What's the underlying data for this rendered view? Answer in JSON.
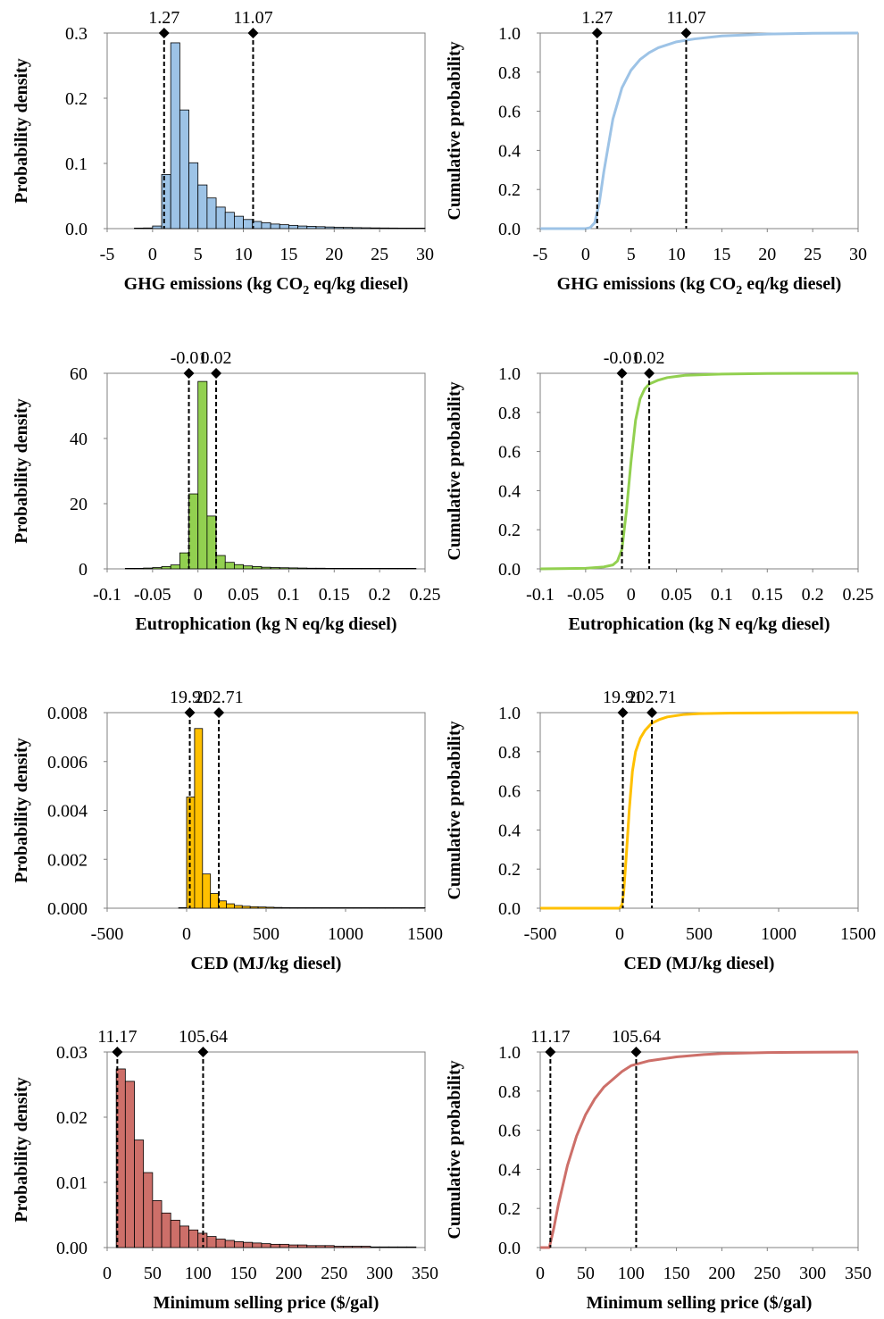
{
  "chart_data": [
    {
      "type": "bar",
      "xlabel_parts": [
        "GHG emissions (kg CO",
        "2",
        " eq/kg diesel)"
      ],
      "ylabel": "Probability density",
      "xlim": [
        -5,
        30
      ],
      "ylim": [
        0,
        0.3
      ],
      "xticks": [
        -5,
        0,
        5,
        10,
        15,
        20,
        25,
        30
      ],
      "xtick_labels": [
        "-5",
        "0",
        "5",
        "10",
        "15",
        "20",
        "25",
        "30"
      ],
      "yticks": [
        0,
        0.1,
        0.2,
        0.3
      ],
      "ytick_labels": [
        "0.0",
        "0.1",
        "0.2",
        "0.3"
      ],
      "bin_width": 1,
      "bins": [
        -2,
        -1,
        0,
        1,
        2,
        3,
        4,
        5,
        6,
        7,
        8,
        9,
        10,
        11,
        12,
        13,
        14,
        15,
        16,
        17,
        18,
        19,
        20,
        21,
        22,
        23,
        24,
        25,
        26,
        27,
        28,
        29
      ],
      "values": [
        0.0005,
        0.001,
        0.004,
        0.083,
        0.285,
        0.182,
        0.101,
        0.067,
        0.047,
        0.033,
        0.025,
        0.019,
        0.014,
        0.011,
        0.009,
        0.007,
        0.006,
        0.005,
        0.004,
        0.0035,
        0.003,
        0.0025,
        0.002,
        0.0018,
        0.0015,
        0.0013,
        0.0011,
        0.001,
        0.0009,
        0.0008,
        0.0007,
        0.0006
      ],
      "color": "#9dc3e6",
      "markers": [
        1.27,
        11.07
      ],
      "marker_labels": [
        "1.27",
        "11.07"
      ],
      "grid": false
    },
    {
      "type": "line",
      "xlabel_parts": [
        "GHG emissions (kg CO",
        "2",
        " eq/kg diesel)"
      ],
      "ylabel": "Cumulative probability",
      "xlim": [
        -5,
        30
      ],
      "ylim": [
        0,
        1
      ],
      "xticks": [
        -5,
        0,
        5,
        10,
        15,
        20,
        25,
        30
      ],
      "xtick_labels": [
        "-5",
        "0",
        "5",
        "10",
        "15",
        "20",
        "25",
        "30"
      ],
      "yticks": [
        0,
        0.2,
        0.4,
        0.6,
        0.8,
        1.0
      ],
      "ytick_labels": [
        "0.0",
        "0.2",
        "0.4",
        "0.6",
        "0.8",
        "1.0"
      ],
      "x": [
        -5,
        0,
        0.5,
        1,
        1.5,
        2,
        3,
        4,
        5,
        6,
        7,
        8,
        10,
        12,
        15,
        20,
        25,
        30
      ],
      "y": [
        0,
        0,
        0.005,
        0.03,
        0.13,
        0.29,
        0.56,
        0.72,
        0.81,
        0.865,
        0.9,
        0.925,
        0.955,
        0.97,
        0.985,
        0.995,
        0.999,
        1.0
      ],
      "color": "#9dc3e6",
      "markers": [
        1.27,
        11.07
      ],
      "marker_labels": [
        "1.27",
        "11.07"
      ],
      "grid": false
    },
    {
      "type": "bar",
      "xlabel_parts": [
        "Eutrophication (kg N eq/kg diesel)"
      ],
      "ylabel": "Probability density",
      "xlim": [
        -0.1,
        0.25
      ],
      "ylim": [
        0,
        60
      ],
      "xticks": [
        -0.1,
        -0.05,
        0,
        0.05,
        0.1,
        0.15,
        0.2,
        0.25
      ],
      "xtick_labels": [
        "-0.1",
        "-0.05",
        "0",
        "0.05",
        "0.1",
        "0.15",
        "0.2",
        "0.25"
      ],
      "yticks": [
        0,
        20,
        40,
        60
      ],
      "ytick_labels": [
        "0",
        "20",
        "40",
        "60"
      ],
      "bin_width": 0.01,
      "bins": [
        -0.08,
        -0.07,
        -0.06,
        -0.05,
        -0.04,
        -0.03,
        -0.02,
        -0.01,
        0,
        0.01,
        0.02,
        0.03,
        0.04,
        0.05,
        0.06,
        0.07,
        0.08,
        0.09,
        0.1,
        0.11,
        0.12,
        0.13,
        0.14,
        0.15,
        0.16,
        0.17,
        0.18,
        0.19,
        0.2,
        0.21,
        0.22,
        0.23
      ],
      "values": [
        0.1,
        0.15,
        0.25,
        0.4,
        0.7,
        1.2,
        4.9,
        23.0,
        57.5,
        16.2,
        4.1,
        2.0,
        1.3,
        0.9,
        0.7,
        0.5,
        0.4,
        0.35,
        0.3,
        0.25,
        0.2,
        0.2,
        0.15,
        0.15,
        0.12,
        0.1,
        0.1,
        0.08,
        0.08,
        0.07,
        0.06,
        0.05
      ],
      "color": "#92d050",
      "markers": [
        -0.01,
        0.02
      ],
      "marker_labels": [
        "-0.01",
        "0.02"
      ],
      "grid": false
    },
    {
      "type": "line",
      "xlabel_parts": [
        "Eutrophication (kg N eq/kg diesel)"
      ],
      "ylabel": "Cumulative probability",
      "xlim": [
        -0.1,
        0.25
      ],
      "ylim": [
        0,
        1
      ],
      "xticks": [
        -0.1,
        -0.05,
        0,
        0.05,
        0.1,
        0.15,
        0.2,
        0.25
      ],
      "xtick_labels": [
        "-0.1",
        "-0.05",
        "0",
        "0.05",
        "0.1",
        "0.15",
        "0.2",
        "0.25"
      ],
      "yticks": [
        0,
        0.2,
        0.4,
        0.6,
        0.8,
        1.0
      ],
      "ytick_labels": [
        "0.0",
        "0.2",
        "0.4",
        "0.6",
        "0.8",
        "1.0"
      ],
      "x": [
        -0.1,
        -0.05,
        -0.03,
        -0.02,
        -0.015,
        -0.01,
        -0.005,
        0,
        0.005,
        0.01,
        0.015,
        0.02,
        0.03,
        0.04,
        0.06,
        0.1,
        0.15,
        0.25
      ],
      "y": [
        0,
        0.003,
        0.01,
        0.02,
        0.04,
        0.1,
        0.3,
        0.55,
        0.76,
        0.87,
        0.92,
        0.945,
        0.965,
        0.978,
        0.99,
        0.996,
        0.999,
        1.0
      ],
      "color": "#92d050",
      "markers": [
        -0.01,
        0.02
      ],
      "marker_labels": [
        "-0.01",
        "0.02"
      ],
      "grid": false
    },
    {
      "type": "bar",
      "xlabel_parts": [
        "CED (MJ/kg diesel)"
      ],
      "ylabel": "Probability density",
      "xlim": [
        -500,
        1500
      ],
      "ylim": [
        0,
        0.008
      ],
      "xticks": [
        -500,
        0,
        500,
        1000,
        1500
      ],
      "xtick_labels": [
        "-500",
        "0",
        "500",
        "1000",
        "1500"
      ],
      "yticks": [
        0,
        0.002,
        0.004,
        0.006,
        0.008
      ],
      "ytick_labels": [
        "0.000",
        "0.002",
        "0.004",
        "0.006",
        "0.008"
      ],
      "bin_width": 50,
      "bins": [
        -50,
        0,
        50,
        100,
        150,
        200,
        250,
        300,
        350,
        400,
        450,
        500,
        550,
        600,
        650,
        700,
        750,
        800,
        850,
        900,
        950,
        1000,
        1050,
        1100,
        1150,
        1200,
        1250,
        1300,
        1350,
        1400,
        1450
      ],
      "values": [
        0.0,
        0.00455,
        0.00735,
        0.0014,
        0.0006,
        0.0003,
        0.00018,
        0.00011,
        8e-05,
        6e-05,
        5e-05,
        4e-05,
        3e-05,
        2.5e-05,
        2e-05,
        1.8e-05,
        1.5e-05,
        1.2e-05,
        1e-05,
        9e-06,
        8e-06,
        7e-06,
        6e-06,
        5e-06,
        5e-06,
        4e-06,
        4e-06,
        3e-06,
        3e-06,
        3e-06,
        2e-06
      ],
      "color": "#ffc000",
      "markers": [
        19.91,
        202.71
      ],
      "marker_labels": [
        "19.91",
        "202.71"
      ],
      "grid": false
    },
    {
      "type": "line",
      "xlabel_parts": [
        "CED (MJ/kg diesel)"
      ],
      "ylabel": "Cumulative probability",
      "xlim": [
        -500,
        1500
      ],
      "ylim": [
        0,
        1
      ],
      "xticks": [
        -500,
        0,
        500,
        1000,
        1500
      ],
      "xtick_labels": [
        "-500",
        "0",
        "500",
        "1000",
        "1500"
      ],
      "yticks": [
        0,
        0.2,
        0.4,
        0.6,
        0.8,
        1.0
      ],
      "ytick_labels": [
        "0.0",
        "0.2",
        "0.4",
        "0.6",
        "0.8",
        "1.0"
      ],
      "x": [
        -500,
        0,
        15,
        25,
        40,
        60,
        80,
        100,
        130,
        160,
        200,
        250,
        300,
        400,
        500,
        700,
        1000,
        1500
      ],
      "y": [
        0,
        0,
        0.02,
        0.08,
        0.25,
        0.5,
        0.7,
        0.8,
        0.87,
        0.91,
        0.945,
        0.965,
        0.978,
        0.99,
        0.995,
        0.998,
        0.999,
        1.0
      ],
      "color": "#ffc000",
      "markers": [
        19.91,
        202.71
      ],
      "marker_labels": [
        "19.91",
        "202.71"
      ],
      "grid": false
    },
    {
      "type": "bar",
      "xlabel_parts": [
        "Minimum selling price ($/gal)"
      ],
      "ylabel": "Probability density",
      "xlim": [
        0,
        350
      ],
      "ylim": [
        0,
        0.03
      ],
      "xticks": [
        0,
        50,
        100,
        150,
        200,
        250,
        300,
        350
      ],
      "xtick_labels": [
        "0",
        "50",
        "100",
        "150",
        "200",
        "250",
        "300",
        "350"
      ],
      "yticks": [
        0,
        0.01,
        0.02,
        0.03
      ],
      "ytick_labels": [
        "0.00",
        "0.01",
        "0.02",
        "0.03"
      ],
      "bin_width": 10,
      "bins": [
        10,
        20,
        30,
        40,
        50,
        60,
        70,
        80,
        90,
        100,
        110,
        120,
        130,
        140,
        150,
        160,
        170,
        180,
        190,
        200,
        210,
        220,
        230,
        240,
        250,
        260,
        270,
        280,
        290,
        300,
        310,
        320,
        330
      ],
      "values": [
        0.0274,
        0.0255,
        0.0165,
        0.0115,
        0.0072,
        0.0053,
        0.0042,
        0.0033,
        0.0027,
        0.0022,
        0.0017,
        0.0013,
        0.0011,
        0.0009,
        0.0008,
        0.0007,
        0.0006,
        0.0005,
        0.0005,
        0.0004,
        0.0004,
        0.0003,
        0.0003,
        0.0003,
        0.0002,
        0.0002,
        0.0002,
        0.0002,
        0.0001,
        0.0001,
        0.0001,
        0.0001,
        0.0001
      ],
      "color": "#cd6f69",
      "markers": [
        11.17,
        105.64
      ],
      "marker_labels": [
        "11.17",
        "105.64"
      ],
      "grid": false
    },
    {
      "type": "line",
      "xlabel_parts": [
        "Minimum selling price ($/gal)"
      ],
      "ylabel": "Cumulative probability",
      "xlim": [
        0,
        350
      ],
      "ylim": [
        0,
        1
      ],
      "xticks": [
        0,
        50,
        100,
        150,
        200,
        250,
        300,
        350
      ],
      "xtick_labels": [
        "0",
        "50",
        "100",
        "150",
        "200",
        "250",
        "300",
        "350"
      ],
      "yticks": [
        0,
        0.2,
        0.4,
        0.6,
        0.8,
        1.0
      ],
      "ytick_labels": [
        "0.0",
        "0.2",
        "0.4",
        "0.6",
        "0.8",
        "1.0"
      ],
      "x": [
        0,
        10,
        15,
        20,
        30,
        40,
        50,
        60,
        70,
        80,
        90,
        100,
        120,
        150,
        180,
        200,
        250,
        300,
        350
      ],
      "y": [
        0,
        0,
        0.1,
        0.22,
        0.42,
        0.57,
        0.68,
        0.76,
        0.82,
        0.86,
        0.9,
        0.93,
        0.955,
        0.975,
        0.987,
        0.992,
        0.997,
        0.999,
        1.0
      ],
      "color": "#cd6f69",
      "markers": [
        11.17,
        105.64
      ],
      "marker_labels": [
        "11.17",
        "105.64"
      ],
      "grid": false
    }
  ]
}
